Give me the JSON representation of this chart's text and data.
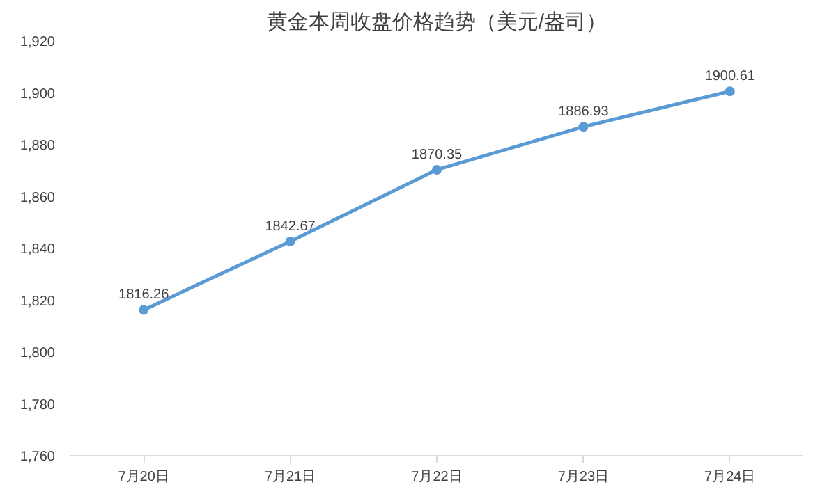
{
  "chart_data": {
    "type": "line",
    "title": "黄金本周收盘价格趋势（美元/盎司）",
    "categories": [
      "7月20日",
      "7月21日",
      "7月22日",
      "7月23日",
      "7月24日"
    ],
    "series": [
      {
        "color": "#5b9bd5",
        "values": [
          1816.26,
          1842.67,
          1870.35,
          1886.93,
          1900.61
        ]
      }
    ],
    "ylim": [
      1760,
      1920
    ],
    "yticks": [
      {
        "value": 1760,
        "label": "1,760"
      },
      {
        "value": 1780,
        "label": "1,780"
      },
      {
        "value": 1800,
        "label": "1,800"
      },
      {
        "value": 1820,
        "label": "1,820"
      },
      {
        "value": 1840,
        "label": "1,840"
      },
      {
        "value": 1860,
        "label": "1,860"
      },
      {
        "value": 1880,
        "label": "1,880"
      },
      {
        "value": 1900,
        "label": "1,900"
      },
      {
        "value": 1920,
        "label": "1,920"
      }
    ],
    "data_labels": true,
    "marker": "circle",
    "line_style": "solid",
    "grid": false
  }
}
